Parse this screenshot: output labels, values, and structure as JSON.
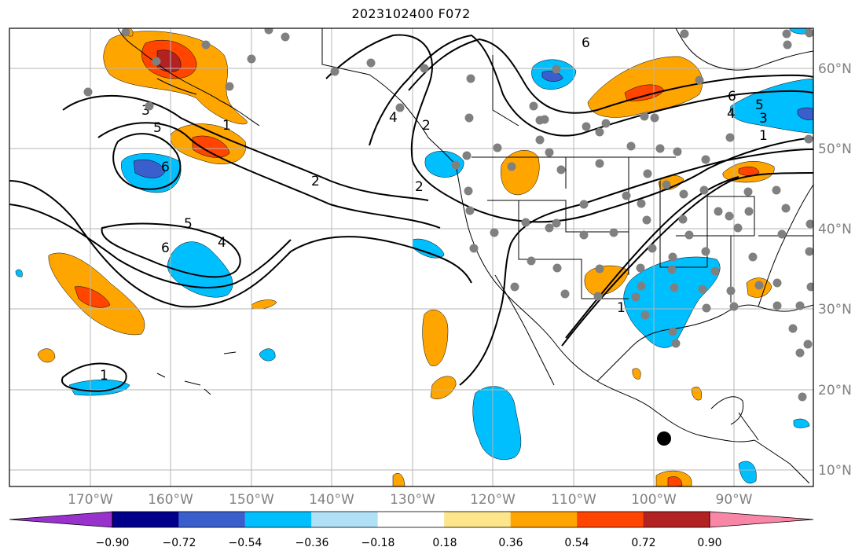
{
  "title": "2023102400 F072",
  "map": {
    "lon_labels": [
      "170°W",
      "160°W",
      "150°W",
      "140°W",
      "130°W",
      "120°W",
      "110°W",
      "100°W",
      "90°W"
    ],
    "lat_labels": [
      "60°N",
      "50°N",
      "40°N",
      "30°N",
      "20°N",
      "10°N"
    ],
    "contour_labels": [
      "3",
      "5",
      "6",
      "1",
      "2",
      "5",
      "6",
      "4",
      "1",
      "2",
      "6",
      "4",
      "5",
      "3",
      "1",
      "6",
      "4",
      "2",
      "1"
    ]
  },
  "colorbar": {
    "colors": [
      "#9932cc",
      "#00008b",
      "#3a5fcd",
      "#00bfff",
      "#b0e0f6",
      "#ffffff",
      "#fde68a",
      "#ffa500",
      "#ff4500",
      "#b22222",
      "#f986a7"
    ],
    "tick_labels": [
      "−0.90",
      "−0.72",
      "−0.54",
      "−0.36",
      "−0.18",
      "0.18",
      "0.36",
      "0.54",
      "0.72",
      "0.90"
    ]
  }
}
